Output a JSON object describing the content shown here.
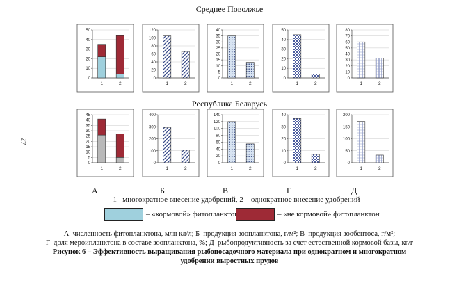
{
  "page_number": "27",
  "region_titles": [
    "Среднее Поволжье",
    "Республика Беларусь"
  ],
  "panel_letters": [
    "А",
    "Б",
    "В",
    "Г",
    "Д"
  ],
  "variants_note": "1– многократное внесение удобрений, 2 – однократное внесение удобрений",
  "legend": [
    {
      "label": "– «кормовой» фитопланктон",
      "color": "#9fd0dd"
    },
    {
      "label": "– «не кормовой» фитопланктон",
      "color": "#9e2a36"
    }
  ],
  "caption": {
    "line1": "А–численность фитопланктона, млн кл/л; Б–продукция зоопланктона, г/м²; В–продукция зообентоса, г/м²;",
    "line2": "Г–доля мероипланктона в составе зоопланктона, %; Д–рыбопродуктивность за счет естественной кормовой базы, кг/г",
    "title1": "Рисунок 6 – Эффективность выращивания рыбопосадочного материала при однократном и многократном",
    "title2": "удобрении выростных прудов"
  },
  "chart_data": [
    {
      "type": "bar",
      "region": "Среднее Поволжье",
      "panel": "А",
      "stacked": true,
      "categories": [
        "1",
        "2"
      ],
      "ylim": [
        0,
        50
      ],
      "yticks": [
        "0",
        "10",
        "20",
        "30",
        "40",
        "50"
      ],
      "series": [
        {
          "name": "«кормовой» фитопланктон",
          "values": [
            22,
            4
          ],
          "pattern": "solid-light"
        },
        {
          "name": "«не кормовой» фитопланктон",
          "values": [
            13,
            40
          ],
          "pattern": "solid-dark"
        }
      ]
    },
    {
      "type": "bar",
      "region": "Среднее Поволжье",
      "panel": "Б",
      "categories": [
        "1",
        "2"
      ],
      "ylim": [
        0,
        120
      ],
      "yticks": [
        "0",
        "20",
        "40",
        "60",
        "80",
        "100",
        "120"
      ],
      "series": [
        {
          "values": [
            105,
            66
          ],
          "pattern": "diagonal"
        }
      ]
    },
    {
      "type": "bar",
      "region": "Среднее Поволжье",
      "panel": "В",
      "categories": [
        "1",
        "2"
      ],
      "ylim": [
        0,
        40
      ],
      "yticks": [
        "0",
        "5",
        "10",
        "15",
        "20",
        "25",
        "30",
        "35",
        "40"
      ],
      "series": [
        {
          "values": [
            35,
            13
          ],
          "pattern": "dots"
        }
      ]
    },
    {
      "type": "bar",
      "region": "Среднее Поволжье",
      "panel": "Г",
      "categories": [
        "1",
        "2"
      ],
      "ylim": [
        0,
        50
      ],
      "yticks": [
        "0",
        "10",
        "20",
        "30",
        "40",
        "50"
      ],
      "series": [
        {
          "values": [
            45,
            4
          ],
          "pattern": "checker"
        }
      ]
    },
    {
      "type": "bar",
      "region": "Среднее Поволжье",
      "panel": "Д",
      "categories": [
        "1",
        "2"
      ],
      "ylim": [
        0,
        80
      ],
      "yticks": [
        "0",
        "10",
        "20",
        "30",
        "40",
        "50",
        "60",
        "70",
        "80"
      ],
      "series": [
        {
          "values": [
            60,
            33
          ],
          "pattern": "vlines"
        }
      ]
    },
    {
      "type": "bar",
      "region": "Республика Беларусь",
      "panel": "А",
      "stacked": true,
      "categories": [
        "1",
        "2"
      ],
      "ylim": [
        0,
        45
      ],
      "yticks": [
        "0",
        "5",
        "10",
        "15",
        "20",
        "25",
        "30",
        "35",
        "40",
        "45"
      ],
      "series": [
        {
          "name": "«кормовой» фитопланктон",
          "values": [
            26,
            5
          ],
          "pattern": "solid-gray"
        },
        {
          "name": "«не кормовой» фитопланктон",
          "values": [
            15,
            22
          ],
          "pattern": "solid-dark"
        }
      ]
    },
    {
      "type": "bar",
      "region": "Республика Беларусь",
      "panel": "Б",
      "categories": [
        "1",
        "2"
      ],
      "ylim": [
        0,
        400
      ],
      "yticks": [
        "0",
        "100",
        "200",
        "300",
        "400"
      ],
      "series": [
        {
          "values": [
            295,
            105
          ],
          "pattern": "diagonal"
        }
      ]
    },
    {
      "type": "bar",
      "region": "Республика Беларусь",
      "panel": "В",
      "categories": [
        "1",
        "2"
      ],
      "ylim": [
        0,
        140
      ],
      "yticks": [
        "0",
        "20",
        "40",
        "60",
        "80",
        "100",
        "120",
        "140"
      ],
      "series": [
        {
          "values": [
            120,
            55
          ],
          "pattern": "dots"
        }
      ]
    },
    {
      "type": "bar",
      "region": "Республика Беларусь",
      "panel": "Г",
      "categories": [
        "1",
        "2"
      ],
      "ylim": [
        0,
        40
      ],
      "yticks": [
        "0",
        "10",
        "20",
        "30",
        "40"
      ],
      "series": [
        {
          "values": [
            37,
            7
          ],
          "pattern": "checker"
        }
      ]
    },
    {
      "type": "bar",
      "region": "Республика Беларусь",
      "panel": "Д",
      "categories": [
        "1",
        "2"
      ],
      "ylim": [
        0,
        200
      ],
      "yticks": [
        "0",
        "50",
        "100",
        "150",
        "200"
      ],
      "series": [
        {
          "values": [
            172,
            32
          ],
          "pattern": "vlines"
        }
      ]
    }
  ]
}
